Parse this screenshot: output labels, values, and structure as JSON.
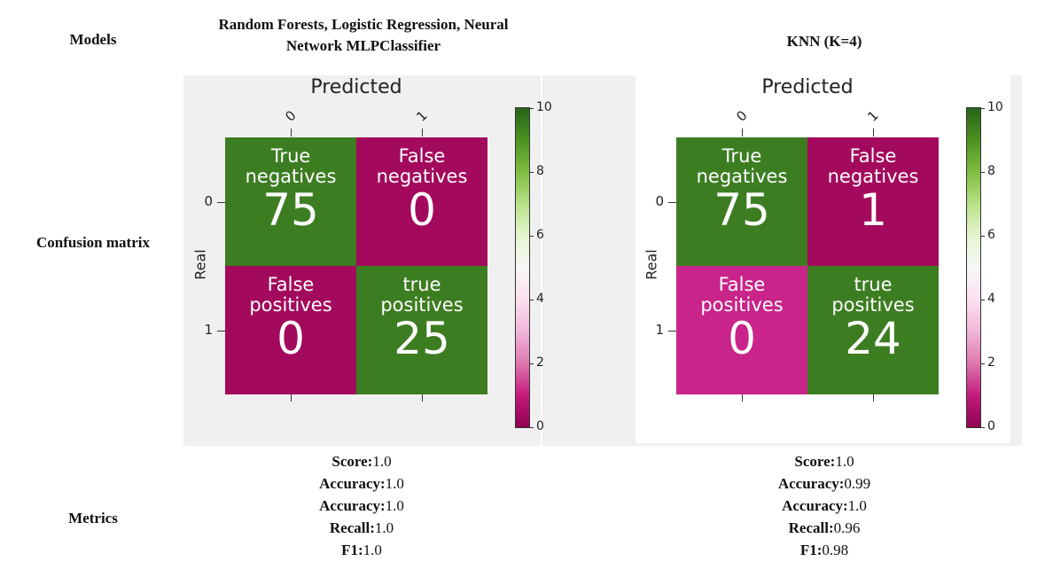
{
  "header": {
    "models": "Models",
    "columns": [
      "Random Forests, Logistic Regression, Neural Network MLPClassifier",
      "KNN (K=4)"
    ]
  },
  "rows": {
    "confusion": "Confusion matrix",
    "metrics": "Metrics"
  },
  "matrices": [
    {
      "xlabel": "Predicted",
      "ylabel": "Real",
      "xticks": [
        "0",
        "1"
      ],
      "yticks": [
        "0",
        "1"
      ],
      "cells": [
        [
          {
            "label": "True negatives",
            "value": 75,
            "color": "#3d7d22"
          },
          {
            "label": "False negatives",
            "value": 0,
            "color": "#a30a5d"
          }
        ],
        [
          {
            "label": "False positives",
            "value": 0,
            "color": "#a30a5d"
          },
          {
            "label": "true positives",
            "value": 25,
            "color": "#3d7d22"
          }
        ]
      ],
      "colorbar": {
        "lim": [
          0,
          10
        ],
        "ticks": [
          0,
          2,
          4,
          6,
          8,
          10
        ],
        "colors": [
          "#8e0152",
          "#c51b7d",
          "#de77ae",
          "#f1b6da",
          "#fde0ef",
          "#f7f7f7",
          "#e6f5d0",
          "#b8e186",
          "#7fbc41",
          "#4d9221",
          "#276419"
        ]
      }
    },
    {
      "xlabel": "Predicted",
      "ylabel": "Real",
      "xticks": [
        "0",
        "1"
      ],
      "yticks": [
        "0",
        "1"
      ],
      "cells": [
        [
          {
            "label": "True negatives",
            "value": 75,
            "color": "#3d7d22"
          },
          {
            "label": "False negatives",
            "value": 1,
            "color": "#a30a5d"
          }
        ],
        [
          {
            "label": "False positives",
            "value": 0,
            "color": "#c9248a"
          },
          {
            "label": "true positives",
            "value": 24,
            "color": "#3d7d22"
          }
        ]
      ],
      "colorbar": {
        "lim": [
          0,
          10
        ],
        "ticks": [
          0,
          2,
          4,
          6,
          8,
          10
        ],
        "colors": [
          "#8e0152",
          "#c51b7d",
          "#de77ae",
          "#f1b6da",
          "#fde0ef",
          "#f7f7f7",
          "#e6f5d0",
          "#b8e186",
          "#7fbc41",
          "#4d9221",
          "#276419"
        ]
      }
    }
  ],
  "metrics": [
    [
      {
        "label": "Score:",
        "value": "1.0"
      },
      {
        "label": "Accuracy:",
        "value": "1.0"
      },
      {
        "label": "Accuracy:",
        "value": "1.0"
      },
      {
        "label": "Recall:",
        "value": "1.0"
      },
      {
        "label": "F1:",
        "value": "1.0"
      }
    ],
    [
      {
        "label": "Score:",
        "value": "1.0"
      },
      {
        "label": "Accuracy:",
        "value": "0.99"
      },
      {
        "label": "Accuracy:",
        "value": "1.0"
      },
      {
        "label": "Recall:",
        "value": "0.96"
      },
      {
        "label": "F1:",
        "value": "0.98"
      }
    ]
  ]
}
